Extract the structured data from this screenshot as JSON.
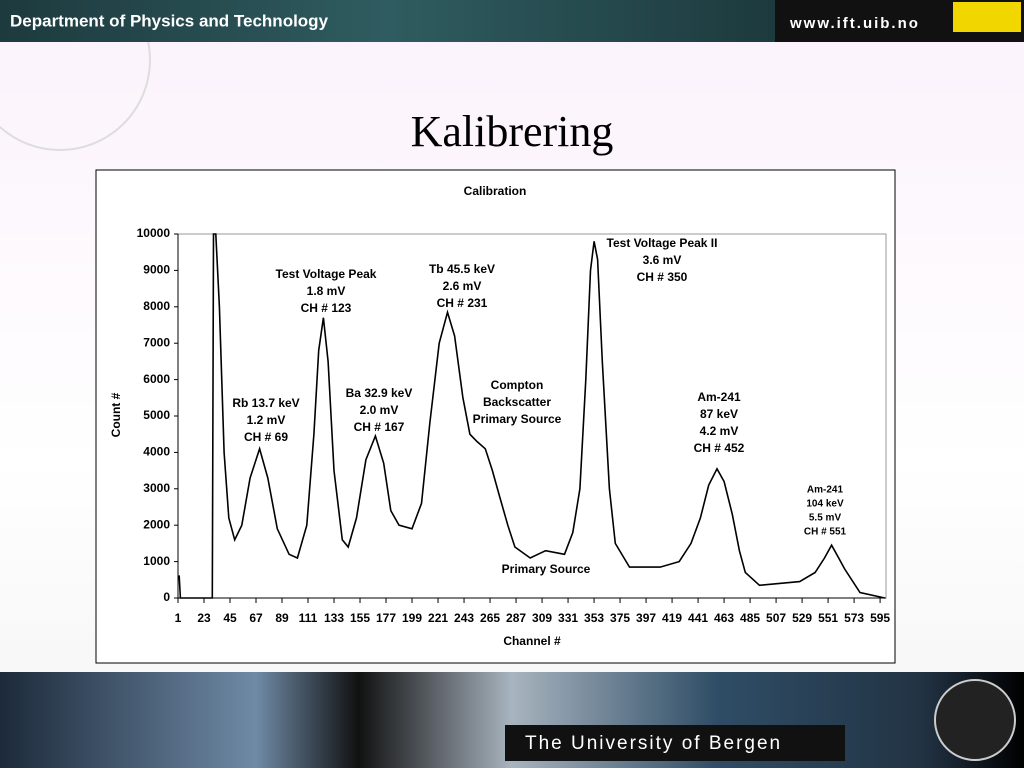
{
  "header": {
    "department": "Department of Physics and Technology",
    "url": "www.ift.uib.no"
  },
  "slide_title": "Kalibrering",
  "footer": {
    "university": "The University of Bergen"
  },
  "chart_data": {
    "type": "line",
    "title": "Calibration",
    "x_label": "Channel #",
    "y_label": "Count #",
    "color": "#000000",
    "x": [
      1,
      2,
      3,
      30,
      31,
      33,
      36,
      40,
      44,
      49,
      55,
      62,
      70,
      77,
      85,
      95,
      102,
      110,
      116,
      120,
      124,
      128,
      133,
      140,
      145,
      152,
      160,
      168,
      175,
      181,
      188,
      199,
      207,
      214,
      222,
      229,
      235,
      242,
      248,
      254,
      261,
      267,
      273,
      280,
      286,
      299,
      312,
      328,
      335,
      341,
      346,
      350,
      353,
      356,
      360,
      366,
      371,
      383,
      409,
      425,
      435,
      443,
      450,
      457,
      463,
      470,
      476,
      481,
      493,
      527,
      540,
      548,
      554,
      560,
      565,
      578,
      599
    ],
    "values": [
      600,
      600,
      0,
      0,
      10000,
      10000,
      8000,
      4000,
      2200,
      1600,
      2000,
      3300,
      4100,
      3300,
      1900,
      1200,
      1100,
      2000,
      4500,
      6800,
      7700,
      6500,
      3500,
      1600,
      1400,
      2200,
      3800,
      4450,
      3700,
      2400,
      2000,
      1900,
      2600,
      4800,
      7000,
      7850,
      7200,
      5500,
      4500,
      4300,
      4100,
      3500,
      2800,
      2000,
      1400,
      1100,
      1300,
      1200,
      1800,
      3000,
      6000,
      9000,
      9800,
      9300,
      6500,
      3000,
      1500,
      850,
      850,
      1000,
      1500,
      2200,
      3100,
      3550,
      3200,
      2300,
      1300,
      700,
      350,
      450,
      700,
      1100,
      1450,
      1100,
      800,
      150,
      0
    ],
    "xlim": [
      1,
      600
    ],
    "xticks": [
      1,
      23,
      45,
      67,
      89,
      111,
      133,
      155,
      177,
      199,
      221,
      243,
      265,
      287,
      309,
      331,
      353,
      375,
      397,
      419,
      441,
      463,
      485,
      507,
      529,
      551,
      573,
      595
    ],
    "ylim": [
      0,
      10000
    ],
    "yticks": [
      0,
      1000,
      2000,
      3000,
      4000,
      5000,
      6000,
      7000,
      8000,
      9000,
      10000
    ],
    "annotations": [
      [
        "Rb 13.7 keV",
        "1.2 mV",
        "CH # 69"
      ],
      [
        "Test Voltage Peak",
        "1.8 mV",
        "CH # 123"
      ],
      [
        "Ba 32.9 keV",
        "2.0 mV",
        "CH # 167"
      ],
      [
        "Tb 45.5 keV",
        "2.6 mV",
        "CH # 231"
      ],
      [
        "Compton",
        "Backscatter",
        "Primary Source"
      ],
      [
        "Primary Source"
      ],
      [
        "Test Voltage Peak II",
        "3.6 mV",
        "CH # 350"
      ],
      [
        "Am-241",
        "87 keV",
        "4.2 mV",
        "CH # 452"
      ],
      [
        "Am-241",
        "104 keV",
        "5.5 mV",
        "CH # 551"
      ]
    ]
  }
}
